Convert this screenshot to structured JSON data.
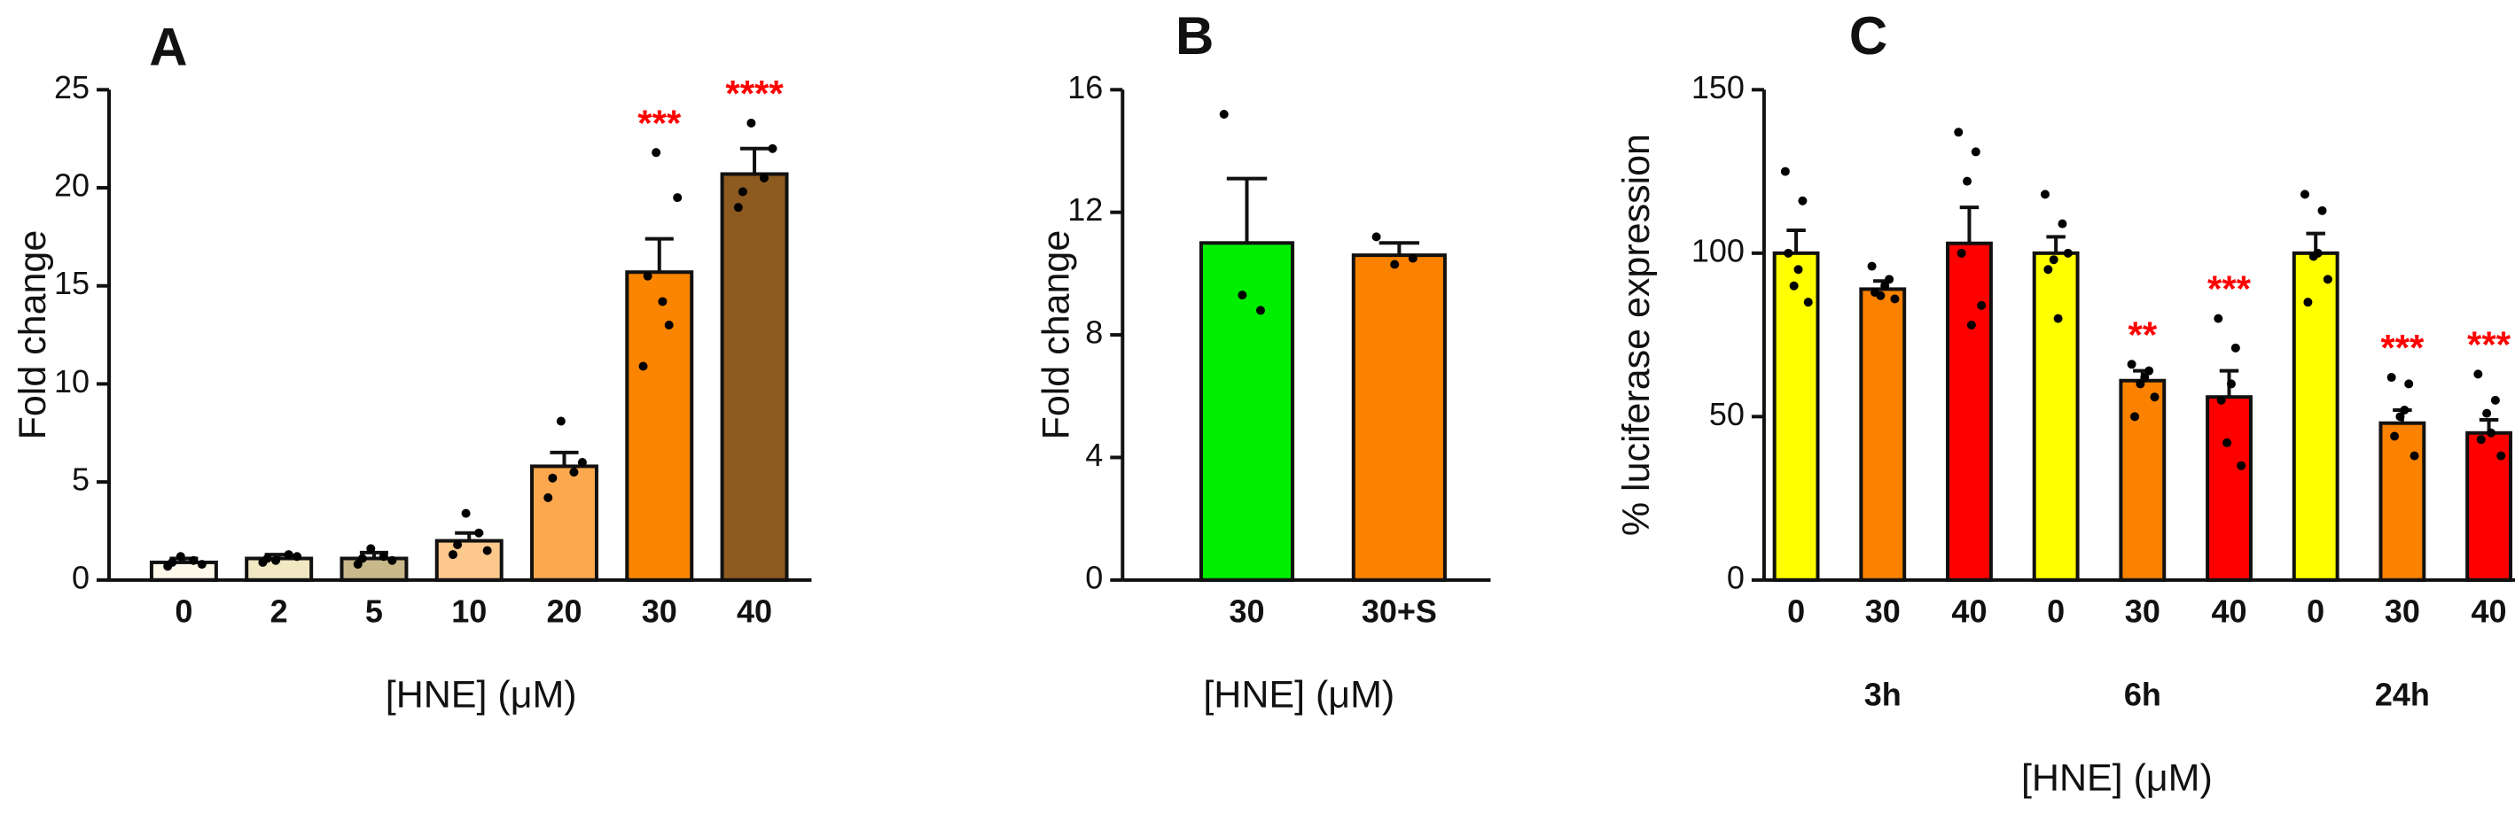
{
  "chart_data": [
    {
      "type": "bar",
      "letter": "A",
      "ylabel": "Fold change",
      "xlabel": "[HNE] (μM)",
      "ylim": [
        0,
        25
      ],
      "yticks": [
        0,
        5,
        10,
        15,
        20,
        25
      ],
      "categories": [
        "0",
        "2",
        "5",
        "10",
        "20",
        "30",
        "40"
      ],
      "values": [
        0.9,
        1.1,
        1.1,
        2.0,
        5.8,
        15.7,
        20.7
      ],
      "errors": [
        0.2,
        0.2,
        0.3,
        0.4,
        0.7,
        1.7,
        1.3
      ],
      "colors": [
        "#fdf8ea",
        "#f1e7c3",
        "#c9b98a",
        "#fcc88c",
        "#fba84f",
        "#fb8500",
        "#8d5b20"
      ],
      "points": [
        [
          0.7,
          1.0,
          1.2,
          0.8,
          0.9
        ],
        [
          0.9,
          1.3,
          1.0,
          1.2,
          1.1
        ],
        [
          0.8,
          1.2,
          1.6,
          1.0,
          1.1
        ],
        [
          1.3,
          2.4,
          3.4,
          1.5,
          1.8
        ],
        [
          4.2,
          5.5,
          8.1,
          6.0,
          5.2
        ],
        [
          10.9,
          13.0,
          21.8,
          19.5,
          15.5,
          14.2
        ],
        [
          19.0,
          20.5,
          23.3,
          22.0,
          19.8
        ]
      ],
      "annotations": [
        null,
        null,
        null,
        null,
        null,
        "***",
        "****"
      ]
    },
    {
      "type": "bar",
      "letter": "B",
      "ylabel": "Fold change",
      "xlabel": "[HNE] (μM)",
      "ylim": [
        0,
        16
      ],
      "yticks": [
        0,
        4,
        8,
        12,
        16
      ],
      "categories": [
        "30",
        "30+S"
      ],
      "values": [
        11.0,
        10.6
      ],
      "errors": [
        2.1,
        0.4
      ],
      "colors": [
        "#00ee00",
        "#fb8200"
      ],
      "points": [
        [
          15.2,
          8.8,
          9.3
        ],
        [
          11.2,
          10.5,
          10.3
        ]
      ],
      "annotations": [
        null,
        null
      ]
    },
    {
      "type": "bar",
      "letter": "C",
      "ylabel": "% luciferase expression",
      "xlabel": "[HNE] (μM)",
      "ylim": [
        0,
        150
      ],
      "yticks": [
        0,
        50,
        100,
        150
      ],
      "colors": [
        "#ffff00",
        "#fb8200",
        "#ff0000"
      ],
      "groups": [
        {
          "name": "3h",
          "categories": [
            "0",
            "30",
            "40"
          ],
          "values": [
            100,
            89,
            103
          ],
          "errors": [
            7,
            2.5,
            11
          ],
          "points": [
            [
              125,
              116,
              90,
              85,
              100,
              95
            ],
            [
              96,
              92,
              87,
              86,
              88,
              90
            ],
            [
              137,
              131,
              122,
              84,
              100,
              78
            ]
          ],
          "annotations": [
            null,
            null,
            null
          ]
        },
        {
          "name": "6h",
          "categories": [
            "0",
            "30",
            "40"
          ],
          "values": [
            100,
            61,
            56
          ],
          "errors": [
            5,
            3,
            8
          ],
          "points": [
            [
              118,
              109,
              98,
              100,
              95,
              80
            ],
            [
              66,
              64,
              60,
              56,
              50,
              62
            ],
            [
              80,
              71,
              42,
              35,
              55,
              60
            ]
          ],
          "annotations": [
            null,
            "**",
            "***"
          ]
        },
        {
          "name": "24h",
          "categories": [
            "0",
            "30",
            "40"
          ],
          "values": [
            100,
            48,
            45
          ],
          "errors": [
            6,
            4,
            4
          ],
          "points": [
            [
              118,
              113,
              99,
              92,
              85,
              100
            ],
            [
              62,
              60,
              50,
              38,
              44,
              52
            ],
            [
              63,
              55,
              51,
              38,
              43,
              45
            ]
          ],
          "annotations": [
            null,
            "***",
            "***"
          ]
        }
      ]
    }
  ]
}
